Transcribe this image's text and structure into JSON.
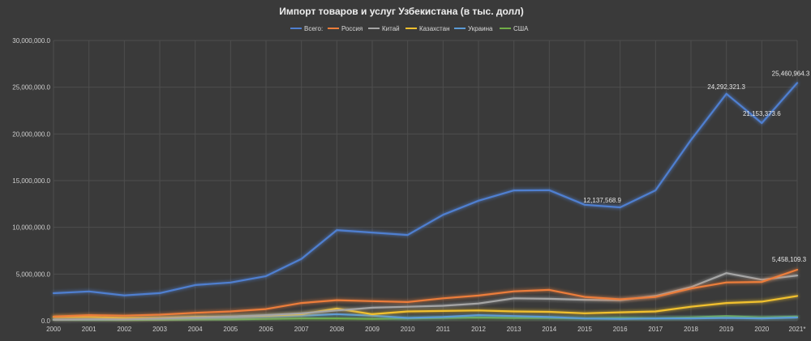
{
  "chart_data": {
    "type": "line",
    "title": "Импорт товаров и услуг Узбекистана  (в тыс. долл)",
    "xlabel": "",
    "ylabel": "",
    "categories": [
      "2000",
      "2001",
      "2002",
      "2003",
      "2004",
      "2005",
      "2006",
      "2007",
      "2008",
      "2009",
      "2010",
      "2011",
      "2012",
      "2013",
      "2014",
      "2015",
      "2016",
      "2017",
      "2018",
      "2019",
      "2020",
      "2021*"
    ],
    "ylim": [
      0,
      30000000
    ],
    "yticks": [
      0,
      5000000,
      10000000,
      15000000,
      20000000,
      25000000,
      30000000
    ],
    "ytick_labels": [
      "0.0",
      "5,000,000.0",
      "10,000,000.0",
      "15,000,000.0",
      "20,000,000.0",
      "25,000,000.0",
      "30,000,000.0"
    ],
    "grid": true,
    "legend_position": "top",
    "series": [
      {
        "name": "Всего:",
        "color": "#4f7fd0",
        "values": [
          2950000,
          3140000,
          2710000,
          2960000,
          3820000,
          4090000,
          4780000,
          6620000,
          9700000,
          9440000,
          9180000,
          11340000,
          12850000,
          13950000,
          13980000,
          12420000,
          12137568.9,
          13960000,
          19350000,
          24292321.3,
          21153373.6,
          25460964.3
        ]
      },
      {
        "name": "Россия",
        "color": "#ec7d3a",
        "values": [
          450000,
          600000,
          550000,
          650000,
          850000,
          1000000,
          1250000,
          1900000,
          2200000,
          2100000,
          2000000,
          2400000,
          2700000,
          3150000,
          3300000,
          2550000,
          2300000,
          2550000,
          3450000,
          4100000,
          4150000,
          5458109.3
        ]
      },
      {
        "name": "Китай",
        "color": "#a5a5a5",
        "values": [
          100000,
          150000,
          150000,
          250000,
          350000,
          450000,
          600000,
          800000,
          1100000,
          1400000,
          1500000,
          1600000,
          1850000,
          2400000,
          2350000,
          2250000,
          2200000,
          2650000,
          3600000,
          5100000,
          4400000,
          4850000
        ]
      },
      {
        "name": "Казахстан",
        "color": "#f2c12e",
        "values": [
          400000,
          400000,
          300000,
          300000,
          400000,
          450000,
          550000,
          700000,
          1300000,
          700000,
          1000000,
          1050000,
          1100000,
          1000000,
          950000,
          800000,
          900000,
          1000000,
          1500000,
          1900000,
          2050000,
          2650000
        ]
      },
      {
        "name": "Украина",
        "color": "#5b9bd5",
        "values": [
          150000,
          150000,
          200000,
          250000,
          300000,
          350000,
          450000,
          550000,
          700000,
          550000,
          300000,
          400000,
          600000,
          500000,
          400000,
          250000,
          200000,
          250000,
          250000,
          300000,
          250000,
          350000
        ]
      },
      {
        "name": "США",
        "color": "#70ad47",
        "values": [
          100000,
          80000,
          80000,
          100000,
          150000,
          150000,
          200000,
          250000,
          250000,
          200000,
          250000,
          300000,
          350000,
          300000,
          300000,
          250000,
          300000,
          250000,
          350000,
          500000,
          350000,
          450000
        ]
      }
    ],
    "annotations": [
      {
        "series": 0,
        "index": 16,
        "text": "12,137,568.9"
      },
      {
        "series": 0,
        "index": 19,
        "text": "24,292,321.3"
      },
      {
        "series": 0,
        "index": 20,
        "text": "21,153,373.6"
      },
      {
        "series": 0,
        "index": 21,
        "text": "25,460,964.3"
      },
      {
        "series": 1,
        "index": 21,
        "text": "5,458,109.3"
      }
    ]
  }
}
